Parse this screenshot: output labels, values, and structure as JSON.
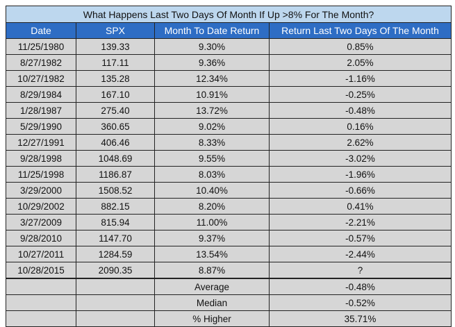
{
  "table": {
    "title": "What Happens Last Two Days Of Month If Up >8% For The Month?",
    "headers": [
      "Date",
      "SPX",
      "Month To Date Return",
      "Return Last Two Days Of The Month"
    ],
    "rows": [
      [
        "11/25/1980",
        "139.33",
        "9.30%",
        "0.85%"
      ],
      [
        "8/27/1982",
        "117.11",
        "9.36%",
        "2.05%"
      ],
      [
        "10/27/1982",
        "135.28",
        "12.34%",
        "-1.16%"
      ],
      [
        "8/29/1984",
        "167.10",
        "10.91%",
        "-0.25%"
      ],
      [
        "1/28/1987",
        "275.40",
        "13.72%",
        "-0.48%"
      ],
      [
        "5/29/1990",
        "360.65",
        "9.02%",
        "0.16%"
      ],
      [
        "12/27/1991",
        "406.46",
        "8.33%",
        "2.62%"
      ],
      [
        "9/28/1998",
        "1048.69",
        "9.55%",
        "-3.02%"
      ],
      [
        "11/25/1998",
        "1186.87",
        "8.03%",
        "-1.96%"
      ],
      [
        "3/29/2000",
        "1508.52",
        "10.40%",
        "-0.66%"
      ],
      [
        "10/29/2002",
        "882.15",
        "8.20%",
        "0.41%"
      ],
      [
        "3/27/2009",
        "815.94",
        "11.00%",
        "-2.21%"
      ],
      [
        "9/28/2010",
        "1147.70",
        "9.37%",
        "-0.57%"
      ],
      [
        "10/27/2011",
        "1284.59",
        "13.54%",
        "-2.44%"
      ],
      [
        "10/28/2015",
        "2090.35",
        "8.87%",
        "?"
      ]
    ],
    "summary": [
      {
        "label": "Average",
        "value": "-0.48%"
      },
      {
        "label": "Median",
        "value": "-0.52%"
      },
      {
        "label": "% Higher",
        "value": "35.71%"
      }
    ]
  },
  "colors": {
    "title_bg": "#bdd7ee",
    "header_bg": "#2e6dc4",
    "row_bg": "#d6d6d6"
  }
}
